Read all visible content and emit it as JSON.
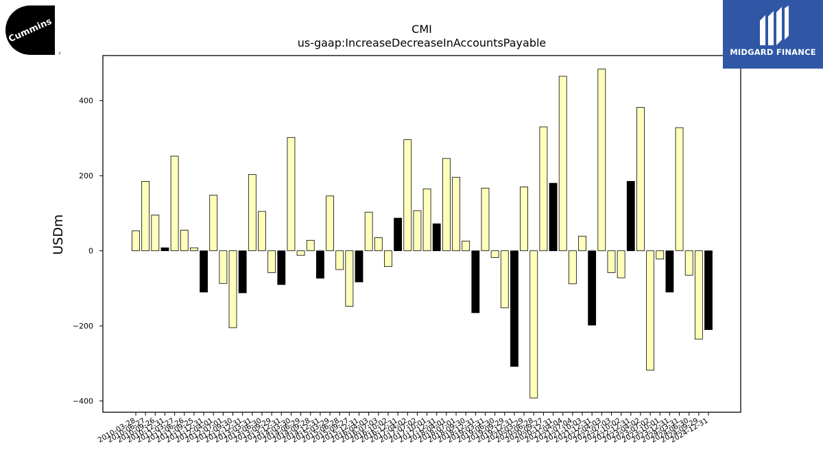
{
  "logos": {
    "left": {
      "name": "Cummins",
      "text": "Cummins"
    },
    "right": {
      "name": "Midgard Finance",
      "text": "MIDGARD FINANCE"
    }
  },
  "chart_data": {
    "type": "bar",
    "title": "CMI",
    "subtitle": "us-gaap:IncreaseDecreaseInAccountsPayable",
    "xlabel": "",
    "ylabel": "USDm",
    "ylim": [
      -430,
      520
    ],
    "yticks": [
      -400,
      -200,
      0,
      200,
      400
    ],
    "grid": false,
    "colors": {
      "annual": "#000000",
      "quarter": "#ffffbb",
      "edge": "#000000"
    },
    "categories": [
      "2010-03-28",
      "2010-06-27",
      "2010-09-26",
      "2010-12-31",
      "2011-03-27",
      "2011-06-26",
      "2011-09-25",
      "2011-12-31",
      "2012-04-01",
      "2012-07-01",
      "2012-09-30",
      "2012-12-31",
      "2013-03-31",
      "2013-06-30",
      "2013-09-29",
      "2013-12-31",
      "2014-03-30",
      "2014-06-29",
      "2014-09-28",
      "2014-12-31",
      "2015-03-29",
      "2015-06-28",
      "2015-09-27",
      "2015-12-31",
      "2016-04-03",
      "2016-07-03",
      "2016-10-02",
      "2016-12-31",
      "2017-04-02",
      "2017-07-02",
      "2017-10-01",
      "2017-12-31",
      "2018-04-01",
      "2018-07-01",
      "2018-09-30",
      "2018-12-31",
      "2019-03-31",
      "2019-06-30",
      "2019-09-29",
      "2019-12-31",
      "2020-03-29",
      "2020-06-28",
      "2020-09-27",
      "2020-12-31",
      "2021-04-04",
      "2021-07-04",
      "2021-10-03",
      "2021-12-31",
      "2022-04-03",
      "2022-07-03",
      "2022-10-02",
      "2022-12-31",
      "2023-04-02",
      "2023-07-02",
      "2023-10-01",
      "2023-12-31",
      "2024-03-31",
      "2024-06-30",
      "2024-09-29",
      "2024-12-31"
    ],
    "values": [
      53,
      185,
      95,
      8,
      252,
      55,
      8,
      -110,
      148,
      -87,
      -205,
      -112,
      203,
      105,
      -58,
      -90,
      302,
      -12,
      28,
      -73,
      146,
      -50,
      -148,
      -83,
      103,
      35,
      -42,
      87,
      296,
      107,
      165,
      72,
      246,
      196,
      26,
      -165,
      167,
      -18,
      -152,
      -308,
      170,
      -392,
      330,
      180,
      465,
      -88,
      39,
      -198,
      484,
      -58,
      -72,
      185,
      382,
      -318,
      -22,
      -110,
      328,
      -65,
      -235,
      -210
    ],
    "annual": [
      false,
      false,
      false,
      true,
      false,
      false,
      false,
      true,
      false,
      false,
      false,
      true,
      false,
      false,
      false,
      true,
      false,
      false,
      false,
      true,
      false,
      false,
      false,
      true,
      false,
      false,
      false,
      true,
      false,
      false,
      false,
      true,
      false,
      false,
      false,
      true,
      false,
      false,
      false,
      true,
      false,
      false,
      false,
      true,
      false,
      false,
      false,
      true,
      false,
      false,
      false,
      true,
      false,
      false,
      false,
      true,
      false,
      false,
      false,
      true
    ]
  }
}
